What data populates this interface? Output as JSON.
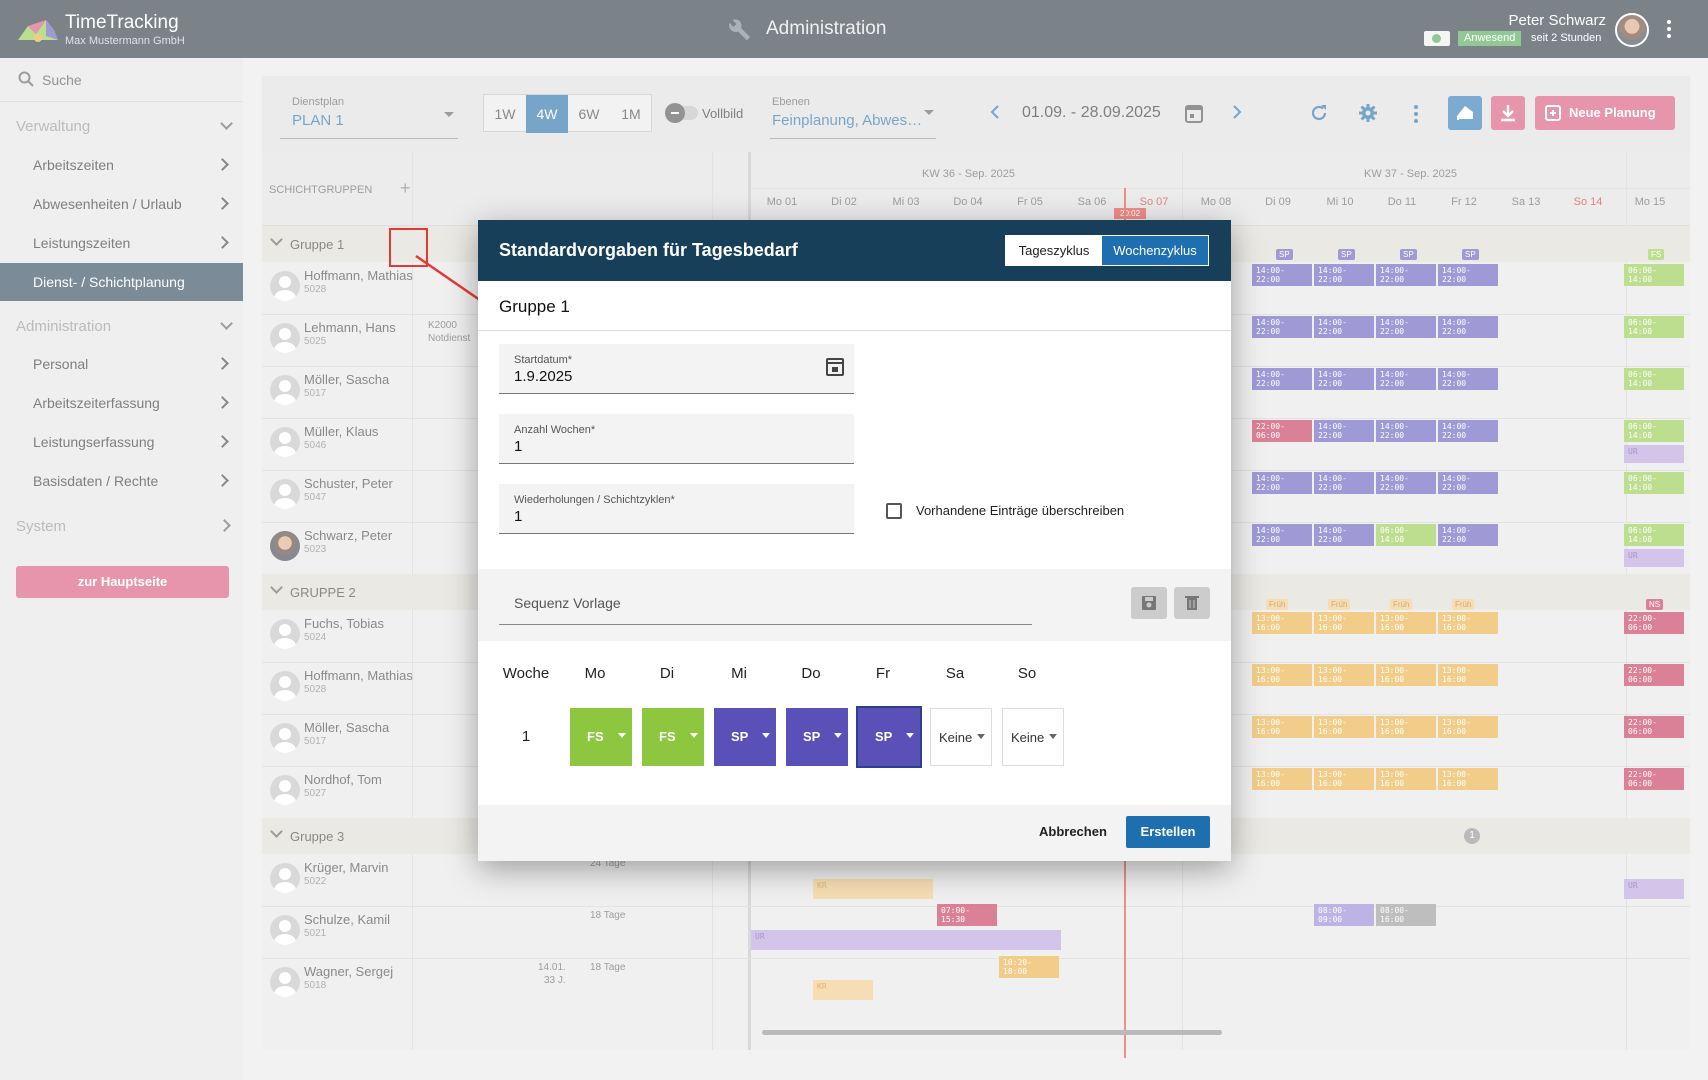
{
  "app": {
    "title": "TimeTracking",
    "company": "Max Mustermann GmbH",
    "section": "Administration"
  },
  "user": {
    "name": "Peter Schwarz",
    "status": "Anwesend",
    "since": "seit 2 Stunden"
  },
  "sidebar": {
    "search": "Suche",
    "home": "zur Hauptseite",
    "groups": [
      {
        "label": "Verwaltung",
        "items": [
          "Arbeitszeiten",
          "Abwesenheiten / Urlaub",
          "Leistungszeiten",
          "Dienst- / Schichtplanung"
        ]
      },
      {
        "label": "Administration",
        "items": [
          "Personal",
          "Arbeitszeiterfassung",
          "Leistungserfassung",
          "Basisdaten / Rechte"
        ]
      },
      {
        "label": "System",
        "items": []
      }
    ]
  },
  "toolbar": {
    "plan_label": "Dienstplan",
    "plan_value": "PLAN 1",
    "views": [
      "1W",
      "4W",
      "6W",
      "1M"
    ],
    "active_view": "4W",
    "fullscreen": "Vollbild",
    "levels_label": "Ebenen",
    "levels_value": "Feinplanung, Abwes…",
    "range": "01.09. - 28.09.2025",
    "new_plan": "Neue Planung"
  },
  "grid": {
    "groups_header": "SCHICHTGRUPPEN",
    "weeks": [
      "KW 36 - Sep. 2025",
      "KW 37 - Sep. 2025"
    ],
    "days": [
      "Mo 01",
      "Di 02",
      "Mi 03",
      "Do 04",
      "Fr 05",
      "Sa 06",
      "So 07",
      "Mo 08",
      "Di 09",
      "Mi 10",
      "Do 11",
      "Fr 12",
      "Sa 13",
      "So 14",
      "Mo 15"
    ],
    "today_tag": "20:02",
    "groups": [
      {
        "name": "Gruppe 1",
        "people": [
          {
            "name": "Hoffmann, Mathias",
            "id": "5028"
          },
          {
            "name": "Lehmann, Hans",
            "id": "5025",
            "note1": "K2000",
            "note2": "Notdienst"
          },
          {
            "name": "Möller, Sascha",
            "id": "5017"
          },
          {
            "name": "Müller, Klaus",
            "id": "5046"
          },
          {
            "name": "Schuster, Peter",
            "id": "5047"
          },
          {
            "name": "Schwarz, Peter",
            "id": "5023"
          }
        ]
      },
      {
        "name": "GRUPPE 2",
        "people": [
          {
            "name": "Fuchs, Tobias",
            "id": "5024"
          },
          {
            "name": "Hoffmann, Mathias",
            "id": "5028"
          },
          {
            "name": "Möller, Sascha",
            "id": "5017"
          },
          {
            "name": "Nordhof, Tom",
            "id": "5027"
          }
        ]
      },
      {
        "name": "Gruppe 3",
        "people": [
          {
            "name": "Krüger, Marvin",
            "id": "5022",
            "days": "24 Tage"
          },
          {
            "name": "Schulze, Kamil",
            "id": "5021",
            "days": "18 Tage"
          },
          {
            "name": "Wagner, Sergej",
            "id": "5018",
            "days": "18 Tage",
            "date": "14.01.",
            "age": "33 J."
          }
        ]
      }
    ]
  },
  "shifts": {
    "sp": "SP",
    "fs": "FS",
    "ur": "UR",
    "ns": "NS",
    "kr": "KR",
    "frueh": "Früh",
    "t1": "14:00-",
    "t2": "22:00",
    "t3": "06:00-",
    "t4": "14:00",
    "t5": "22:00-",
    "t6": "06:00",
    "t7": "13:00-",
    "t8": "16:00",
    "t9": "07:00-",
    "t10": "15:30",
    "t11": "08:00-",
    "t12": "09:00",
    "t13": "10:20-",
    "t14": "18:00",
    "t15": "16:00",
    "count": "1"
  },
  "modal": {
    "title": "Standardvorgaben für Tagesbedarf",
    "tabs": [
      "Tageszyklus",
      "Wochenzyklus"
    ],
    "group": "Gruppe 1",
    "start_label": "Startdatum*",
    "start_value": "1.9.2025",
    "weeks_label": "Anzahl Wochen*",
    "weeks_value": "1",
    "rep_label": "Wiederholungen / Schichtzyklen*",
    "rep_value": "1",
    "overwrite": "Vorhandene Einträge überschreiben",
    "sequence": "Sequenz Vorlage",
    "header_week": "Woche",
    "day_labels": [
      "Mo",
      "Di",
      "Mi",
      "Do",
      "Fr",
      "Sa",
      "So"
    ],
    "row_week": "1",
    "cells": [
      "FS",
      "FS",
      "SP",
      "SP",
      "SP",
      "Keine",
      "Keine"
    ],
    "cancel": "Abbrechen",
    "create": "Erstellen"
  },
  "colors": {
    "primary": "#173f5a",
    "accent": "#1e6fb0",
    "pink": "#d64873",
    "fs": "#8dc63f",
    "sp": "#5a51b8"
  }
}
